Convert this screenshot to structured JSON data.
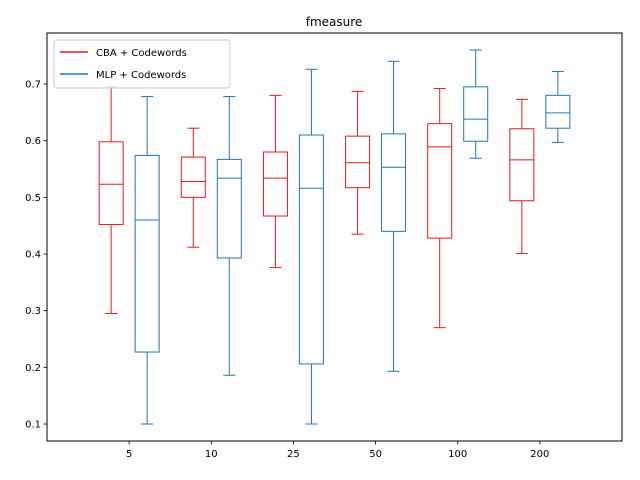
{
  "chart_data": {
    "type": "boxplot",
    "title": "fmeasure",
    "xlabel": "",
    "ylabel": "",
    "categories": [
      "5",
      "10",
      "25",
      "50",
      "100",
      "200"
    ],
    "ylim": [
      0.07,
      0.79
    ],
    "yticks": [
      0.1,
      0.2,
      0.3,
      0.4,
      0.5,
      0.6,
      0.7
    ],
    "grid": false,
    "legend_position": "top-left",
    "series": [
      {
        "name": "CBA + Codewords",
        "color": "#e31a1c",
        "boxes": [
          {
            "whislo": 0.295,
            "q1": 0.452,
            "med": 0.523,
            "q3": 0.598,
            "whishi": 0.695
          },
          {
            "whislo": 0.412,
            "q1": 0.5,
            "med": 0.528,
            "q3": 0.571,
            "whishi": 0.622
          },
          {
            "whislo": 0.376,
            "q1": 0.467,
            "med": 0.534,
            "q3": 0.58,
            "whishi": 0.68
          },
          {
            "whislo": 0.435,
            "q1": 0.517,
            "med": 0.561,
            "q3": 0.608,
            "whishi": 0.687
          },
          {
            "whislo": 0.27,
            "q1": 0.428,
            "med": 0.589,
            "q3": 0.63,
            "whishi": 0.692
          },
          {
            "whislo": 0.401,
            "q1": 0.494,
            "med": 0.566,
            "q3": 0.621,
            "whishi": 0.673
          }
        ]
      },
      {
        "name": "MLP + Codewords",
        "color": "#1f77b4",
        "boxes": [
          {
            "whislo": 0.1,
            "q1": 0.227,
            "med": 0.46,
            "q3": 0.574,
            "whishi": 0.678
          },
          {
            "whislo": 0.186,
            "q1": 0.393,
            "med": 0.534,
            "q3": 0.567,
            "whishi": 0.678
          },
          {
            "whislo": 0.1,
            "q1": 0.206,
            "med": 0.516,
            "q3": 0.61,
            "whishi": 0.726
          },
          {
            "whislo": 0.193,
            "q1": 0.44,
            "med": 0.553,
            "q3": 0.612,
            "whishi": 0.74
          },
          {
            "whislo": 0.569,
            "q1": 0.599,
            "med": 0.638,
            "q3": 0.695,
            "whishi": 0.76
          },
          {
            "whislo": 0.597,
            "q1": 0.622,
            "med": 0.649,
            "q3": 0.68,
            "whishi": 0.722
          }
        ]
      }
    ]
  }
}
